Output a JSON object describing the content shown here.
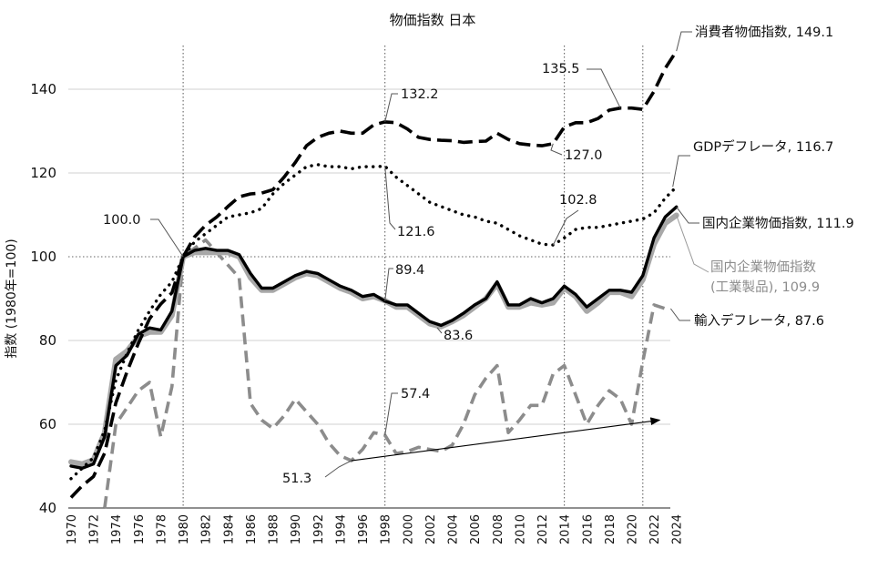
{
  "chart_data": {
    "type": "line",
    "title": "物価指数 日本",
    "ylabel": "指数 (1980年=100)",
    "xlabel": "",
    "xlim": [
      1970,
      2024
    ],
    "ylim": [
      40,
      150
    ],
    "yticks": [
      40,
      60,
      80,
      100,
      120,
      140
    ],
    "xticks": [
      1970,
      1972,
      1974,
      1976,
      1978,
      1980,
      1982,
      1984,
      1986,
      1988,
      1990,
      1992,
      1994,
      1996,
      1998,
      2000,
      2002,
      2004,
      2006,
      2008,
      2010,
      2012,
      2014,
      2016,
      2018,
      2020,
      2022,
      2024
    ],
    "grid": true,
    "reference_lines": {
      "x": [
        1980,
        1998,
        2014,
        2021
      ],
      "y": [
        100
      ]
    },
    "series": [
      {
        "name": "消費者物価指数",
        "end_label": "消費者物価指数, 149.1",
        "style": "long-dash",
        "color": "#000000",
        "x": [
          1970,
          1971,
          1972,
          1973,
          1974,
          1975,
          1976,
          1977,
          1978,
          1979,
          1980,
          1981,
          1982,
          1983,
          1984,
          1985,
          1986,
          1987,
          1988,
          1989,
          1990,
          1991,
          1992,
          1993,
          1994,
          1995,
          1996,
          1997,
          1998,
          1999,
          2000,
          2001,
          2002,
          2003,
          2004,
          2005,
          2006,
          2007,
          2008,
          2009,
          2010,
          2011,
          2012,
          2013,
          2014,
          2015,
          2016,
          2017,
          2018,
          2019,
          2020,
          2021,
          2022,
          2023,
          2024
        ],
        "values": [
          42.5,
          45.3,
          47.5,
          53.1,
          65.1,
          72.6,
          79.3,
          85.2,
          88.7,
          91.4,
          100.0,
          104.7,
          107.5,
          109.5,
          112.0,
          114.3,
          115.0,
          115.2,
          116.0,
          119.0,
          122.5,
          126.5,
          128.5,
          129.5,
          130.0,
          129.5,
          129.5,
          131.5,
          132.2,
          132.0,
          130.5,
          128.5,
          128.0,
          127.8,
          127.7,
          127.3,
          127.5,
          127.6,
          129.5,
          128.0,
          127.0,
          126.7,
          126.5,
          127.0,
          131.0,
          132.0,
          132.0,
          133.0,
          135.0,
          135.5,
          135.5,
          135.2,
          139.5,
          145.0,
          149.1
        ]
      },
      {
        "name": "GDPデフレータ",
        "end_label": "GDPデフレータ, 116.7",
        "style": "dotted",
        "color": "#000000",
        "x": [
          1970,
          1971,
          1972,
          1973,
          1974,
          1975,
          1976,
          1977,
          1978,
          1979,
          1980,
          1981,
          1982,
          1983,
          1984,
          1985,
          1986,
          1987,
          1988,
          1989,
          1990,
          1991,
          1992,
          1993,
          1994,
          1995,
          1996,
          1997,
          1998,
          1999,
          2000,
          2001,
          2002,
          2003,
          2004,
          2005,
          2006,
          2007,
          2008,
          2009,
          2010,
          2011,
          2012,
          2013,
          2014,
          2015,
          2016,
          2017,
          2018,
          2019,
          2020,
          2021,
          2022,
          2023,
          2024
        ],
        "values": [
          47.0,
          49.5,
          52.0,
          58.5,
          70.5,
          77.0,
          82.5,
          87.0,
          91.0,
          94.0,
          100.0,
          103.5,
          105.5,
          107.5,
          109.5,
          110.0,
          110.5,
          111.5,
          115.0,
          117.5,
          119.5,
          121.5,
          122.0,
          121.5,
          121.5,
          121.0,
          121.5,
          121.5,
          121.6,
          119.0,
          117.0,
          115.0,
          113.0,
          112.0,
          111.0,
          110.0,
          109.5,
          108.5,
          108.0,
          106.5,
          105.0,
          104.0,
          103.0,
          102.8,
          104.5,
          106.5,
          107.0,
          107.0,
          107.5,
          108.0,
          108.5,
          109.0,
          110.5,
          114.0,
          116.7
        ]
      },
      {
        "name": "国内企業物価指数(工業製品)",
        "end_label_lines": [
          "国内企業物価指数",
          "(工業製品), 109.9"
        ],
        "style": "solid",
        "color": "#a8a8a8",
        "x": [
          1970,
          1971,
          1972,
          1973,
          1974,
          1975,
          1976,
          1977,
          1978,
          1979,
          1980,
          1981,
          1982,
          1983,
          1984,
          1985,
          1986,
          1987,
          1988,
          1989,
          1990,
          1991,
          1992,
          1993,
          1994,
          1995,
          1996,
          1997,
          1998,
          1999,
          2000,
          2001,
          2002,
          2003,
          2004,
          2005,
          2006,
          2007,
          2008,
          2009,
          2010,
          2011,
          2012,
          2013,
          2014,
          2015,
          2016,
          2017,
          2018,
          2019,
          2020,
          2021,
          2022,
          2023,
          2024
        ],
        "values": [
          51.0,
          50.5,
          51.5,
          58.0,
          75.5,
          77.5,
          81.0,
          82.0,
          82.0,
          86.0,
          100.0,
          101.0,
          101.0,
          101.0,
          101.0,
          100.0,
          95.0,
          92.0,
          92.0,
          93.5,
          95.0,
          96.0,
          95.5,
          94.0,
          92.5,
          91.5,
          90.0,
          90.5,
          89.5,
          88.0,
          88.0,
          86.0,
          84.0,
          83.3,
          84.5,
          86.0,
          88.0,
          90.0,
          93.5,
          88.0,
          88.0,
          89.0,
          88.5,
          89.0,
          92.5,
          90.5,
          87.0,
          89.0,
          91.5,
          91.5,
          90.5,
          94.5,
          103.0,
          108.0,
          109.9
        ]
      },
      {
        "name": "国内企業物価指数",
        "end_label": "国内企業物価指数, 111.9",
        "style": "solid",
        "color": "#000000",
        "x": [
          1970,
          1971,
          1972,
          1973,
          1974,
          1975,
          1976,
          1977,
          1978,
          1979,
          1980,
          1981,
          1982,
          1983,
          1984,
          1985,
          1986,
          1987,
          1988,
          1989,
          1990,
          1991,
          1992,
          1993,
          1994,
          1995,
          1996,
          1997,
          1998,
          1999,
          2000,
          2001,
          2002,
          2003,
          2004,
          2005,
          2006,
          2007,
          2008,
          2009,
          2010,
          2011,
          2012,
          2013,
          2014,
          2015,
          2016,
          2017,
          2018,
          2019,
          2020,
          2021,
          2022,
          2023,
          2024
        ],
        "values": [
          50.0,
          49.5,
          50.5,
          57.0,
          74.0,
          76.5,
          81.5,
          83.0,
          82.5,
          87.0,
          100.0,
          101.5,
          102.0,
          101.5,
          101.5,
          100.5,
          96.0,
          92.5,
          92.5,
          94.0,
          95.5,
          96.5,
          96.0,
          94.5,
          93.0,
          92.0,
          90.5,
          91.0,
          89.4,
          88.5,
          88.5,
          86.5,
          84.5,
          83.6,
          84.8,
          86.5,
          88.5,
          90.0,
          94.0,
          88.5,
          88.5,
          90.0,
          89.0,
          90.0,
          93.0,
          91.0,
          88.0,
          90.0,
          92.0,
          92.0,
          91.5,
          95.5,
          104.5,
          109.5,
          111.9
        ]
      },
      {
        "name": "輸入デフレータ",
        "end_label": "輸入デフレータ, 87.6",
        "style": "dashed",
        "color": "#8c8c8c",
        "x": [
          1973,
          1974,
          1975,
          1976,
          1977,
          1978,
          1979,
          1980,
          1981,
          1982,
          1983,
          1984,
          1985,
          1986,
          1987,
          1988,
          1989,
          1990,
          1991,
          1992,
          1993,
          1994,
          1995,
          1996,
          1997,
          1998,
          1999,
          2000,
          2001,
          2002,
          2003,
          2004,
          2005,
          2006,
          2007,
          2008,
          2009,
          2010,
          2011,
          2012,
          2013,
          2014,
          2015,
          2016,
          2017,
          2018,
          2019,
          2020,
          2021,
          2022,
          2023
        ],
        "values": [
          40.0,
          60.0,
          64.0,
          68.0,
          70.0,
          57.0,
          69.0,
          100.0,
          102.0,
          104.0,
          101.0,
          98.0,
          95.0,
          65.0,
          61.0,
          59.0,
          62.0,
          66.0,
          63.0,
          60.0,
          55.5,
          52.5,
          51.3,
          54.0,
          58.0,
          57.4,
          53.0,
          53.5,
          54.5,
          54.0,
          53.5,
          55.0,
          60.0,
          67.0,
          71.0,
          74.0,
          58.0,
          61.0,
          64.5,
          64.5,
          72.0,
          74.0,
          67.0,
          60.0,
          64.5,
          68.0,
          66.0,
          60.0,
          75.0,
          88.5,
          87.6
        ]
      }
    ],
    "annotations": [
      {
        "text": "100.0",
        "x": 1980,
        "y": 100.0
      },
      {
        "text": "132.2",
        "x": 1998,
        "y": 132.2
      },
      {
        "text": "121.6",
        "x": 1998,
        "y": 121.6
      },
      {
        "text": "89.4",
        "x": 1998,
        "y": 89.4
      },
      {
        "text": "57.4",
        "x": 1998,
        "y": 57.4
      },
      {
        "text": "83.6",
        "x": 2003,
        "y": 83.6
      },
      {
        "text": "51.3",
        "x": 1995,
        "y": 51.3
      },
      {
        "text": "135.5",
        "x": 2019,
        "y": 135.5
      },
      {
        "text": "127.0",
        "x": 2013,
        "y": 127.0
      },
      {
        "text": "102.8",
        "x": 2013,
        "y": 102.8
      }
    ],
    "trend_arrow": {
      "from": [
        1995,
        51.3
      ],
      "to": [
        2022.5,
        61.0
      ]
    }
  }
}
